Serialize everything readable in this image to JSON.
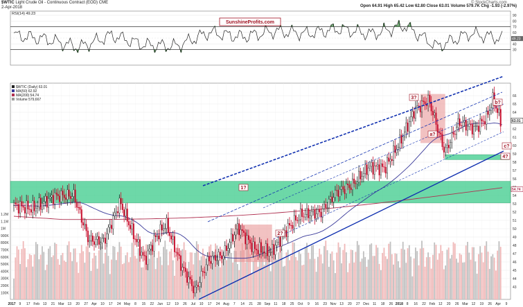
{
  "header": {
    "symbol": "$WTIC",
    "description": "Light Crude Oil - Continuous Contract (EOD)",
    "exchange": "CME",
    "date": "2-Apr-2018",
    "open": "Open 64.91",
    "high": "High 65.42",
    "low": "Low 62.80",
    "close": "Close 63.01",
    "volume": "Volume 579.7K",
    "change": "Chg -1.93 (-2.97%)",
    "watermark": "© StockCharts.com",
    "banner": "SunshineProfits.com"
  },
  "legend": {
    "title": "$WTIC (Daily) 63.01",
    "ma50": "MA(50) 62.92",
    "ma200": "MA(200) 54.74",
    "volume": "Volume 579,667",
    "rsi": "RSI(14) 49.23"
  },
  "colors": {
    "up": "#222222",
    "down": "#c8102e",
    "ma50": "#3a3a9a",
    "ma200": "#b03050",
    "channel": "#1030b0",
    "green_zone": "#3dcc8c",
    "red_box": "#e89090",
    "rsi_fill": "#2e7d32"
  },
  "annotations": {
    "one": "1?",
    "two": "2?",
    "three": "3?",
    "a": "a?",
    "b": "b?",
    "c": "c?",
    "four": "4?"
  },
  "price_tags": {
    "last": "63.01",
    "ma200": "54.74",
    "rsi_last": "49.23"
  },
  "chart_data": [
    {
      "type": "line",
      "title": "RSI(14)",
      "ylim": [
        10,
        90
      ],
      "y_ticks": [
        "90",
        "80",
        "70",
        "60",
        "50",
        "40",
        "30"
      ],
      "reference_lines": [
        70,
        30
      ],
      "last_value": 49.23,
      "x": [
        "2017-01",
        "2017-02",
        "2017-03",
        "2017-04",
        "2017-05",
        "2017-06",
        "2017-07",
        "2017-08",
        "2017-09",
        "2017-10",
        "2017-11",
        "2017-12",
        "2018-01",
        "2018-02",
        "2018-03",
        "2018-04"
      ],
      "values": [
        55,
        48,
        34,
        55,
        38,
        36,
        60,
        52,
        62,
        58,
        66,
        57,
        72,
        35,
        58,
        49
      ]
    },
    {
      "type": "bar",
      "title": "$WTIC (Daily) 63.01",
      "ylim": [
        41.5,
        67.5
      ],
      "y_ticks": [
        "66",
        "65",
        "64",
        "63",
        "62",
        "61",
        "60",
        "59",
        "58",
        "57",
        "56",
        "55",
        "54",
        "53",
        "52",
        "51",
        "50",
        "49",
        "48",
        "47",
        "46",
        "45",
        "44",
        "43"
      ],
      "x_tick_labels": [
        "2017",
        "9",
        "17",
        "Feb",
        "13",
        "21",
        "Mar",
        "13",
        "20",
        "27",
        "Apr",
        "10",
        "17",
        "24",
        "May",
        "8",
        "15",
        "22",
        "Jun",
        "12",
        "19",
        "26",
        "Jul",
        "10",
        "17",
        "24",
        "Aug",
        "7",
        "14",
        "21",
        "28",
        "Sep",
        "11",
        "18",
        "25",
        "Oct",
        "9",
        "16",
        "23",
        "Nov",
        "13",
        "20",
        "27",
        "Dec",
        "11",
        "18",
        "26",
        "2018",
        "8",
        "16",
        "22",
        "Feb",
        "12",
        "20",
        "26",
        "Mar",
        "12",
        "19",
        "26",
        "Apr",
        "9"
      ],
      "close_series": {
        "x": [
          "2017-01-03",
          "2017-01-20",
          "2017-02-10",
          "2017-02-28",
          "2017-03-14",
          "2017-03-28",
          "2017-04-12",
          "2017-04-25",
          "2017-05-05",
          "2017-05-15",
          "2017-05-25",
          "2017-06-08",
          "2017-06-21",
          "2017-07-03",
          "2017-07-17",
          "2017-07-31",
          "2017-08-15",
          "2017-08-31",
          "2017-09-15",
          "2017-09-28",
          "2017-10-16",
          "2017-10-31",
          "2017-11-15",
          "2017-11-30",
          "2017-12-15",
          "2017-12-29",
          "2018-01-12",
          "2018-01-25",
          "2018-02-09",
          "2018-02-22",
          "2018-03-09",
          "2018-03-20",
          "2018-03-26",
          "2018-04-02"
        ],
        "values": [
          52.8,
          52.4,
          53.9,
          54.0,
          48.6,
          48.5,
          53.2,
          49.2,
          46.2,
          48.9,
          50.6,
          45.6,
          42.5,
          46.2,
          46.8,
          50.2,
          47.6,
          47.2,
          50.0,
          51.7,
          51.9,
          54.4,
          55.3,
          57.4,
          57.3,
          60.4,
          64.3,
          65.5,
          59.2,
          62.8,
          62.0,
          63.4,
          65.6,
          63.0
        ]
      },
      "ma50_last": 62.92,
      "ma200_last": 54.74,
      "green_zones": [
        [
          53.1,
          55.7
        ],
        [
          58.3,
          58.9
        ]
      ],
      "price_boxes": [
        {
          "label": "1?",
          "x": [
            "2017-07-27",
            "2017-08-31"
          ],
          "y": [
            46.0,
            50.5
          ]
        },
        {
          "label": "3?",
          "x": [
            "2018-01-16",
            "2018-02-08"
          ],
          "y": [
            60.3,
            66.2
          ]
        }
      ],
      "channel_lines": [
        "upper",
        "middle",
        "lower",
        "support"
      ]
    },
    {
      "type": "bar",
      "title": "Volume 579,667",
      "y_ticks": [
        "1.2M",
        "1.1M",
        "1M",
        "900K",
        "800K",
        "700K",
        "600K",
        "500K",
        "400K",
        "300K",
        "200K",
        "100K"
      ],
      "last_value": 579667
    }
  ]
}
